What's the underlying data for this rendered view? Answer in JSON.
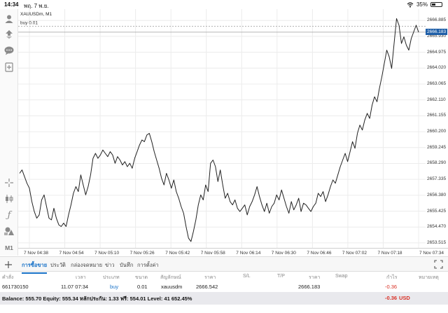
{
  "status_bar": {
    "time": "14:34",
    "date": "พฤ. 7 พ.ย.",
    "battery": "35%"
  },
  "chart": {
    "symbol_label": "XAUUSDm, M1",
    "order_line_label": "buy 0.01",
    "current_price_tag": "2666.183",
    "line_color": "#222222",
    "price_tag_color": "#1f5fa8"
  },
  "toolbar": {
    "icons": [
      "account-icon",
      "trade-arrows-icon",
      "chat-icon",
      "add-document-icon",
      "crosshair-icon",
      "candles-icon",
      "function-icon",
      "objects-icon",
      "timeframe-label"
    ],
    "timeframe": "M1"
  },
  "chart_data": {
    "type": "line",
    "title": "XAUUSDm, M1",
    "x_ticks": [
      "7 Nov 04:38",
      "7 Nov 04:54",
      "7 Nov 05:10",
      "7 Nov 05:26",
      "7 Nov 05:42",
      "7 Nov 05:58",
      "7 Nov 06:14",
      "7 Nov 06:30",
      "7 Nov 06:46",
      "7 Nov 07:02",
      "7 Nov 07:18",
      "7 Nov 07:34"
    ],
    "y_ticks": [
      2666.885,
      2665.93,
      2664.975,
      2664.02,
      2663.065,
      2662.11,
      2661.155,
      2660.2,
      2659.245,
      2658.29,
      2657.335,
      2656.38,
      2655.425,
      2654.47,
      2653.515
    ],
    "ylim": [
      2653.3,
      2667.4
    ],
    "grid": true,
    "values": [
      2657.7,
      2657.9,
      2657.5,
      2657.1,
      2656.8,
      2656.0,
      2655.4,
      2655.0,
      2655.2,
      2656.1,
      2656.4,
      2655.7,
      2655.0,
      2654.9,
      2655.6,
      2655.0,
      2654.6,
      2654.5,
      2654.7,
      2654.5,
      2655.2,
      2655.8,
      2656.5,
      2656.9,
      2656.6,
      2657.6,
      2657.0,
      2656.4,
      2656.9,
      2657.6,
      2658.6,
      2658.9,
      2658.6,
      2658.8,
      2659.1,
      2658.9,
      2658.7,
      2659.0,
      2658.8,
      2658.3,
      2658.7,
      2658.5,
      2658.2,
      2658.4,
      2658.1,
      2658.3,
      2658.0,
      2658.6,
      2659.0,
      2659.4,
      2659.7,
      2659.6,
      2660.0,
      2660.1,
      2659.6,
      2659.0,
      2658.5,
      2658.0,
      2657.4,
      2657.0,
      2657.7,
      2657.3,
      2656.8,
      2657.3,
      2656.6,
      2656.2,
      2655.7,
      2655.3,
      2654.5,
      2653.8,
      2653.6,
      2654.2,
      2654.9,
      2655.8,
      2656.4,
      2656.1,
      2657.0,
      2656.6,
      2658.3,
      2658.5,
      2658.1,
      2657.2,
      2657.9,
      2657.0,
      2656.2,
      2656.5,
      2656.0,
      2655.8,
      2656.1,
      2655.6,
      2655.4,
      2655.6,
      2655.8,
      2655.2,
      2655.7,
      2656.0,
      2656.4,
      2656.9,
      2656.3,
      2655.8,
      2655.4,
      2655.9,
      2655.3,
      2655.7,
      2655.9,
      2656.4,
      2656.1,
      2656.7,
      2656.2,
      2655.7,
      2655.3,
      2656.0,
      2655.5,
      2655.8,
      2656.2,
      2655.4,
      2655.9,
      2655.8,
      2655.6,
      2655.4,
      2655.7,
      2655.9,
      2656.5,
      2656.3,
      2656.6,
      2656.0,
      2656.4,
      2656.9,
      2657.3,
      2657.1,
      2657.6,
      2658.1,
      2658.5,
      2658.9,
      2658.4,
      2659.0,
      2659.6,
      2659.2,
      2660.1,
      2660.6,
      2660.3,
      2660.9,
      2661.3,
      2661.0,
      2661.8,
      2662.3,
      2662.0,
      2662.8,
      2663.5,
      2664.3,
      2665.1,
      2664.7,
      2664.0,
      2665.5,
      2667.0,
      2666.6,
      2665.5,
      2665.9,
      2665.4,
      2665.1,
      2665.8,
      2666.2,
      2666.6,
      2666.183
    ]
  },
  "tabs": [
    "การซื้อขาย",
    "ประวัติ",
    "กล่องจดหมาย",
    "ข่าว",
    "บันทึก",
    "การตั้งค่า"
  ],
  "table": {
    "headers": [
      "คำสั่ง",
      "เวลา",
      "ประเภท",
      "ขนาด",
      "สัญลักษณ์",
      "ราคา",
      "S/L",
      "T/P",
      "ราคา",
      "Swap",
      "กำไร",
      "หมายเหตุ"
    ],
    "row": {
      "order": "661730150",
      "time": "11.07 07:34",
      "type": "buy",
      "size": "0.01",
      "symbol": "xauusdm",
      "open_price": "2666.542",
      "current_price": "2666.183",
      "profit": "-0.36"
    }
  },
  "footer": {
    "summary": "Balance: 555.70  Equity: 555.34  หลักประกัน: 1.33  ฟรี: 554.01  Level: 41 652.45%",
    "total_profit": "-0.36",
    "currency": "USD"
  },
  "colors": {
    "loss": "#d93025",
    "accent": "#1a73c8",
    "buy": "#1a73c8"
  }
}
